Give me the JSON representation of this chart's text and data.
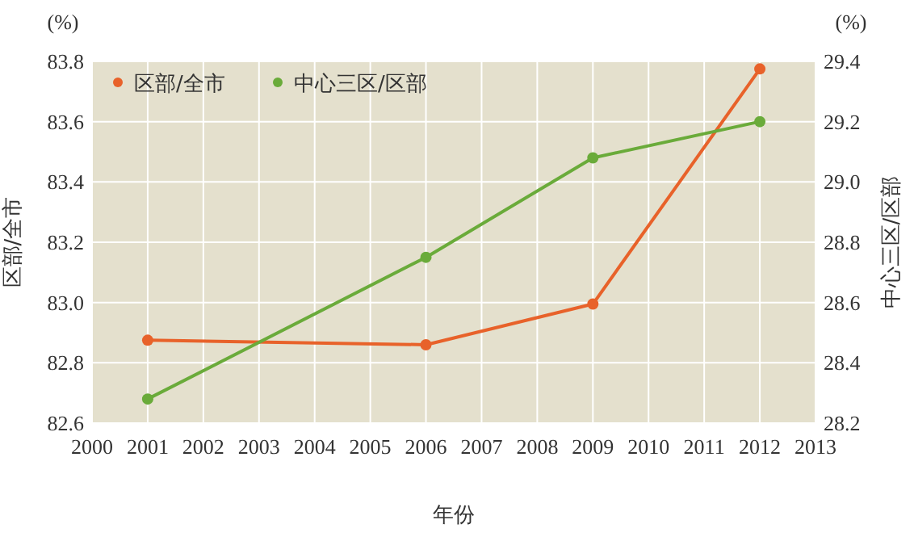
{
  "chart_data": {
    "type": "line",
    "xlabel": "年份",
    "ylabel": "区部/全市",
    "y2label": "中心三区/区部",
    "annotations": [
      "(%)",
      "(%)"
    ],
    "x": [
      2001,
      2006,
      2009,
      2012
    ],
    "series": [
      {
        "name": "区部/全市",
        "color": "#e8622a",
        "values": [
          82.875,
          82.86,
          82.995,
          83.775
        ]
      },
      {
        "name": "中心三区/区部",
        "color": "#6aab3a",
        "values": [
          28.28,
          28.75,
          29.08,
          29.2
        ],
        "axis": "y2"
      }
    ],
    "xlim": [
      2000,
      2013
    ],
    "xticks": [
      2000,
      2001,
      2002,
      2003,
      2004,
      2005,
      2006,
      2007,
      2008,
      2009,
      2010,
      2011,
      2012,
      2013
    ],
    "ylim": [
      82.6,
      83.8
    ],
    "yticks": [
      {
        "value": 82.6,
        "label": "82.6"
      },
      {
        "value": 82.8,
        "label": "82.8"
      },
      {
        "value": 83.0,
        "label": "83.0"
      },
      {
        "value": 83.2,
        "label": "83.2"
      },
      {
        "value": 83.4,
        "label": "83.4"
      },
      {
        "value": 83.6,
        "label": "83.6"
      },
      {
        "value": 83.8,
        "label": "83.8"
      }
    ],
    "y2lim": [
      28.2,
      29.4
    ],
    "y2ticks": [
      {
        "value": 28.2,
        "label": "28.2"
      },
      {
        "value": 28.4,
        "label": "28.4"
      },
      {
        "value": 28.6,
        "label": "28.6"
      },
      {
        "value": 28.8,
        "label": "28.8"
      },
      {
        "value": 29.0,
        "label": "29.0"
      },
      {
        "value": 29.2,
        "label": "29.2"
      },
      {
        "value": 29.4,
        "label": "29.4"
      }
    ],
    "grid": true,
    "legend": "top left",
    "marker": "circle",
    "line_style": "solid"
  }
}
